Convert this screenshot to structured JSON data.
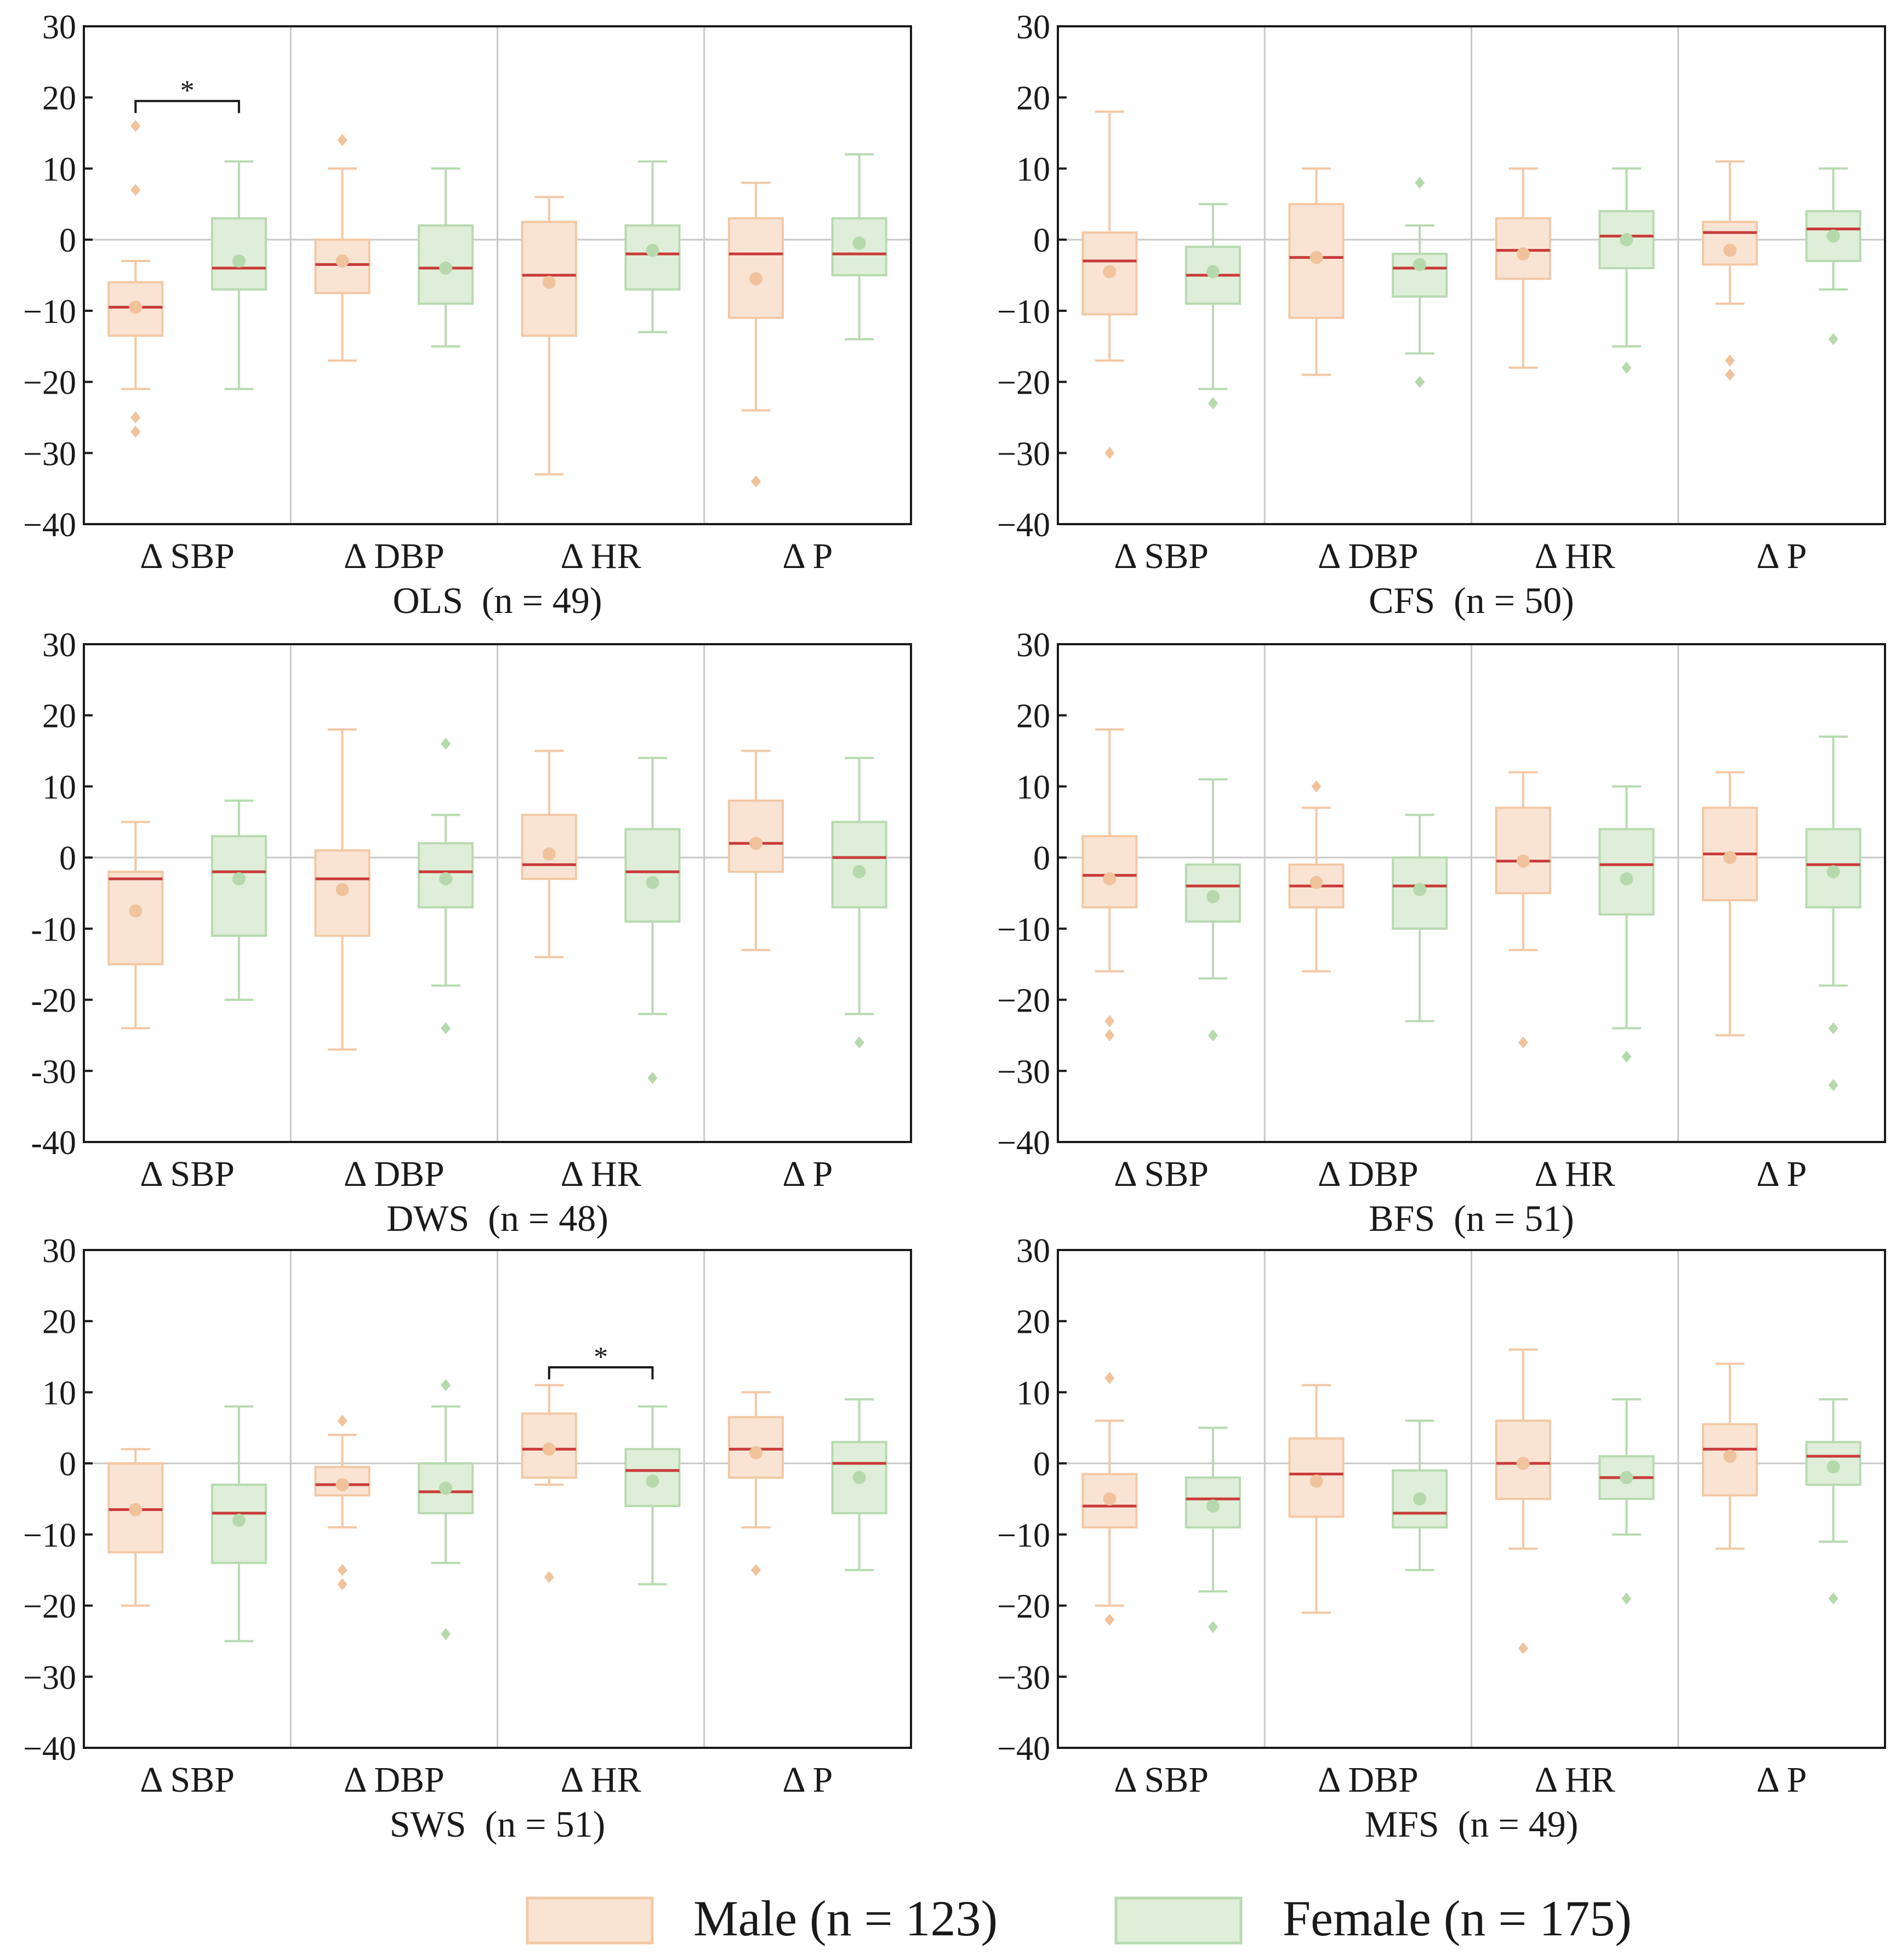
{
  "colors": {
    "male_fill": "#f9e4d4",
    "male_stroke": "#f2c8a4",
    "male_mean": "#f0c39d",
    "female_fill": "#dfeed8",
    "female_stroke": "#b7dab0",
    "female_mean": "#b5d9ac",
    "median": "#c93a3a",
    "axis": "#1a1a1a",
    "divider": "#c8c8c8",
    "zero_line": "#c8c8c8"
  },
  "legend": {
    "male_label": "Male (n = 123)",
    "female_label": "Female (n = 175)"
  },
  "chart_data": [
    {
      "type": "boxplot",
      "title": "OLS  (n = 49)",
      "categories": [
        "Δ SBP",
        "Δ DBP",
        "Δ HR",
        "Δ P"
      ],
      "ylim": [
        -40,
        30
      ],
      "yticks": [
        30,
        20,
        10,
        0,
        -10,
        -20,
        -30,
        -40
      ],
      "ytick_labels": [
        "30",
        "20",
        "10",
        "0",
        "−10",
        "−20",
        "−30",
        "−40"
      ],
      "series": [
        {
          "name": "Male",
          "boxes": [
            {
              "whislo": -21,
              "q1": -13.5,
              "med": -9.5,
              "q3": -6,
              "whishi": -3,
              "mean": -9.5,
              "fliers": [
                16,
                7,
                -25,
                -27
              ]
            },
            {
              "whislo": -17,
              "q1": -7.5,
              "med": -3.5,
              "q3": 0,
              "whishi": 10,
              "mean": -3,
              "fliers": [
                14
              ]
            },
            {
              "whislo": -33,
              "q1": -13.5,
              "med": -5,
              "q3": 2.5,
              "whishi": 6,
              "mean": -6,
              "fliers": []
            },
            {
              "whislo": -24,
              "q1": -11,
              "med": -2,
              "q3": 3,
              "whishi": 8,
              "mean": -5.5,
              "fliers": [
                -34
              ]
            }
          ]
        },
        {
          "name": "Female",
          "boxes": [
            {
              "whislo": -21,
              "q1": -7,
              "med": -4,
              "q3": 3,
              "whishi": 11,
              "mean": -3,
              "fliers": []
            },
            {
              "whislo": -15,
              "q1": -9,
              "med": -4,
              "q3": 2,
              "whishi": 10,
              "mean": -4,
              "fliers": []
            },
            {
              "whislo": -13,
              "q1": -7,
              "med": -2,
              "q3": 2,
              "whishi": 11,
              "mean": -1.5,
              "fliers": []
            },
            {
              "whislo": -14,
              "q1": -5,
              "med": -2,
              "q3": 3,
              "whishi": 12,
              "mean": -0.5,
              "fliers": []
            }
          ]
        }
      ],
      "significance": [
        {
          "category_index": 0,
          "y": 19.5,
          "label": "*"
        }
      ]
    },
    {
      "type": "boxplot",
      "title": "CFS  (n = 50)",
      "categories": [
        "Δ SBP",
        "Δ DBP",
        "Δ HR",
        "Δ P"
      ],
      "ylim": [
        -40,
        30
      ],
      "yticks": [
        30,
        20,
        10,
        0,
        -10,
        -20,
        -30,
        -40
      ],
      "ytick_labels": [
        "30",
        "20",
        "10",
        "0",
        "−10",
        "−20",
        "−30",
        "−40"
      ],
      "series": [
        {
          "name": "Male",
          "boxes": [
            {
              "whislo": -17,
              "q1": -10.5,
              "med": -3,
              "q3": 1,
              "whishi": 18,
              "mean": -4.5,
              "fliers": [
                -30
              ]
            },
            {
              "whislo": -19,
              "q1": -11,
              "med": -2.5,
              "q3": 5,
              "whishi": 10,
              "mean": -2.5,
              "fliers": []
            },
            {
              "whislo": -18,
              "q1": -5.5,
              "med": -1.5,
              "q3": 3,
              "whishi": 10,
              "mean": -2,
              "fliers": []
            },
            {
              "whislo": -9,
              "q1": -3.5,
              "med": 1,
              "q3": 2.5,
              "whishi": 11,
              "mean": -1.5,
              "fliers": [
                -17,
                -19
              ]
            }
          ]
        },
        {
          "name": "Female",
          "boxes": [
            {
              "whislo": -21,
              "q1": -9,
              "med": -5,
              "q3": -1,
              "whishi": 5,
              "mean": -4.5,
              "fliers": [
                -23
              ]
            },
            {
              "whislo": -16,
              "q1": -8,
              "med": -4,
              "q3": -2,
              "whishi": 2,
              "mean": -3.5,
              "fliers": [
                8,
                -20
              ]
            },
            {
              "whislo": -15,
              "q1": -4,
              "med": 0.5,
              "q3": 4,
              "whishi": 10,
              "mean": 0,
              "fliers": [
                -18
              ]
            },
            {
              "whislo": -7,
              "q1": -3,
              "med": 1.5,
              "q3": 4,
              "whishi": 10,
              "mean": 0.5,
              "fliers": [
                -14
              ]
            }
          ]
        }
      ],
      "significance": []
    },
    {
      "type": "boxplot",
      "title": "DWS  (n = 48)",
      "categories": [
        "Δ SBP",
        "Δ DBP",
        "Δ HR",
        "Δ P"
      ],
      "ylim": [
        -40,
        30
      ],
      "yticks": [
        30,
        20,
        10,
        0,
        -10,
        -20,
        -30,
        -40
      ],
      "ytick_labels": [
        "30",
        "20",
        "10",
        "0",
        "-10",
        "-20",
        "-30",
        "-40"
      ],
      "series": [
        {
          "name": "Male",
          "boxes": [
            {
              "whislo": -24,
              "q1": -15,
              "med": -3,
              "q3": -2,
              "whishi": 5,
              "mean": -7.5,
              "fliers": []
            },
            {
              "whislo": -27,
              "q1": -11,
              "med": -3,
              "q3": 1,
              "whishi": 18,
              "mean": -4.5,
              "fliers": []
            },
            {
              "whislo": -14,
              "q1": -3,
              "med": -1,
              "q3": 6,
              "whishi": 15,
              "mean": 0.5,
              "fliers": []
            },
            {
              "whislo": -13,
              "q1": -2,
              "med": 2,
              "q3": 8,
              "whishi": 15,
              "mean": 2,
              "fliers": []
            }
          ]
        },
        {
          "name": "Female",
          "boxes": [
            {
              "whislo": -20,
              "q1": -11,
              "med": -2,
              "q3": 3,
              "whishi": 8,
              "mean": -3,
              "fliers": []
            },
            {
              "whislo": -18,
              "q1": -7,
              "med": -2,
              "q3": 2,
              "whishi": 6,
              "mean": -3,
              "fliers": [
                16,
                -24
              ]
            },
            {
              "whislo": -22,
              "q1": -9,
              "med": -2,
              "q3": 4,
              "whishi": 14,
              "mean": -3.5,
              "fliers": [
                -31
              ]
            },
            {
              "whislo": -22,
              "q1": -7,
              "med": 0,
              "q3": 5,
              "whishi": 14,
              "mean": -2,
              "fliers": [
                -26
              ]
            }
          ]
        }
      ],
      "significance": []
    },
    {
      "type": "boxplot",
      "title": "BFS  (n = 51)",
      "categories": [
        "Δ SBP",
        "Δ DBP",
        "Δ HR",
        "Δ P"
      ],
      "ylim": [
        -40,
        30
      ],
      "yticks": [
        30,
        20,
        10,
        0,
        -10,
        -20,
        -30,
        -40
      ],
      "ytick_labels": [
        "30",
        "20",
        "10",
        "0",
        "−10",
        "−20",
        "−30",
        "−40"
      ],
      "series": [
        {
          "name": "Male",
          "boxes": [
            {
              "whislo": -16,
              "q1": -7,
              "med": -2.5,
              "q3": 3,
              "whishi": 18,
              "mean": -3,
              "fliers": [
                -23,
                -25
              ]
            },
            {
              "whislo": -16,
              "q1": -7,
              "med": -4,
              "q3": -1,
              "whishi": 7,
              "mean": -3.5,
              "fliers": [
                10
              ]
            },
            {
              "whislo": -13,
              "q1": -5,
              "med": -0.5,
              "q3": 7,
              "whishi": 12,
              "mean": -0.5,
              "fliers": [
                -26
              ]
            },
            {
              "whislo": -25,
              "q1": -6,
              "med": 0.5,
              "q3": 7,
              "whishi": 12,
              "mean": 0,
              "fliers": []
            }
          ]
        },
        {
          "name": "Female",
          "boxes": [
            {
              "whislo": -17,
              "q1": -9,
              "med": -4,
              "q3": -1,
              "whishi": 11,
              "mean": -5.5,
              "fliers": [
                -25
              ]
            },
            {
              "whislo": -23,
              "q1": -10,
              "med": -4,
              "q3": 0,
              "whishi": 6,
              "mean": -4.5,
              "fliers": []
            },
            {
              "whislo": -24,
              "q1": -8,
              "med": -1,
              "q3": 4,
              "whishi": 10,
              "mean": -3,
              "fliers": [
                -28
              ]
            },
            {
              "whislo": -18,
              "q1": -7,
              "med": -1,
              "q3": 4,
              "whishi": 17,
              "mean": -2,
              "fliers": [
                -24,
                -32
              ]
            }
          ]
        }
      ],
      "significance": []
    },
    {
      "type": "boxplot",
      "title": "SWS  (n = 51)",
      "categories": [
        "Δ SBP",
        "Δ DBP",
        "Δ HR",
        "Δ P"
      ],
      "ylim": [
        -40,
        30
      ],
      "yticks": [
        30,
        20,
        10,
        0,
        -10,
        -20,
        -30,
        -40
      ],
      "ytick_labels": [
        "30",
        "20",
        "10",
        "0",
        "−10",
        "−20",
        "−30",
        "−40"
      ],
      "series": [
        {
          "name": "Male",
          "boxes": [
            {
              "whislo": -20,
              "q1": -12.5,
              "med": -6.5,
              "q3": 0,
              "whishi": 2,
              "mean": -6.5,
              "fliers": []
            },
            {
              "whislo": -9,
              "q1": -4.5,
              "med": -3,
              "q3": -0.5,
              "whishi": 4,
              "mean": -3,
              "fliers": [
                6,
                -15,
                -17
              ]
            },
            {
              "whislo": -3,
              "q1": -2,
              "med": 2,
              "q3": 7,
              "whishi": 11,
              "mean": 2,
              "fliers": [
                -16
              ]
            },
            {
              "whislo": -9,
              "q1": -2,
              "med": 2,
              "q3": 6.5,
              "whishi": 10,
              "mean": 1.5,
              "fliers": [
                -15
              ]
            }
          ]
        },
        {
          "name": "Female",
          "boxes": [
            {
              "whislo": -25,
              "q1": -14,
              "med": -7,
              "q3": -3,
              "whishi": 8,
              "mean": -8,
              "fliers": []
            },
            {
              "whislo": -14,
              "q1": -7,
              "med": -4,
              "q3": 0,
              "whishi": 8,
              "mean": -3.5,
              "fliers": [
                11,
                -24
              ]
            },
            {
              "whislo": -17,
              "q1": -6,
              "med": -1,
              "q3": 2,
              "whishi": 8,
              "mean": -2.5,
              "fliers": []
            },
            {
              "whislo": -15,
              "q1": -7,
              "med": 0,
              "q3": 3,
              "whishi": 9,
              "mean": -2,
              "fliers": []
            }
          ]
        }
      ],
      "significance": [
        {
          "category_index": 2,
          "y": 13.5,
          "label": "*"
        }
      ]
    },
    {
      "type": "boxplot",
      "title": "MFS  (n = 49)",
      "categories": [
        "Δ SBP",
        "Δ DBP",
        "Δ HR",
        "Δ P"
      ],
      "ylim": [
        -40,
        30
      ],
      "yticks": [
        30,
        20,
        10,
        0,
        -10,
        -20,
        -30,
        -40
      ],
      "ytick_labels": [
        "30",
        "20",
        "10",
        "0",
        "−10",
        "−20",
        "−30",
        "−40"
      ],
      "series": [
        {
          "name": "Male",
          "boxes": [
            {
              "whislo": -20,
              "q1": -9,
              "med": -6,
              "q3": -1.5,
              "whishi": 6,
              "mean": -5,
              "fliers": [
                12,
                -22
              ]
            },
            {
              "whislo": -21,
              "q1": -7.5,
              "med": -1.5,
              "q3": 3.5,
              "whishi": 11,
              "mean": -2.5,
              "fliers": []
            },
            {
              "whislo": -12,
              "q1": -5,
              "med": 0,
              "q3": 6,
              "whishi": 16,
              "mean": 0,
              "fliers": [
                -26
              ]
            },
            {
              "whislo": -12,
              "q1": -4.5,
              "med": 2,
              "q3": 5.5,
              "whishi": 14,
              "mean": 1,
              "fliers": []
            }
          ]
        },
        {
          "name": "Female",
          "boxes": [
            {
              "whislo": -18,
              "q1": -9,
              "med": -5,
              "q3": -2,
              "whishi": 5,
              "mean": -6,
              "fliers": [
                -23
              ]
            },
            {
              "whislo": -15,
              "q1": -9,
              "med": -7,
              "q3": -1,
              "whishi": 6,
              "mean": -5,
              "fliers": []
            },
            {
              "whislo": -10,
              "q1": -5,
              "med": -2,
              "q3": 1,
              "whishi": 9,
              "mean": -2,
              "fliers": [
                -19
              ]
            },
            {
              "whislo": -11,
              "q1": -3,
              "med": 1,
              "q3": 3,
              "whishi": 9,
              "mean": -0.5,
              "fliers": [
                -19
              ]
            }
          ]
        }
      ],
      "significance": []
    }
  ]
}
